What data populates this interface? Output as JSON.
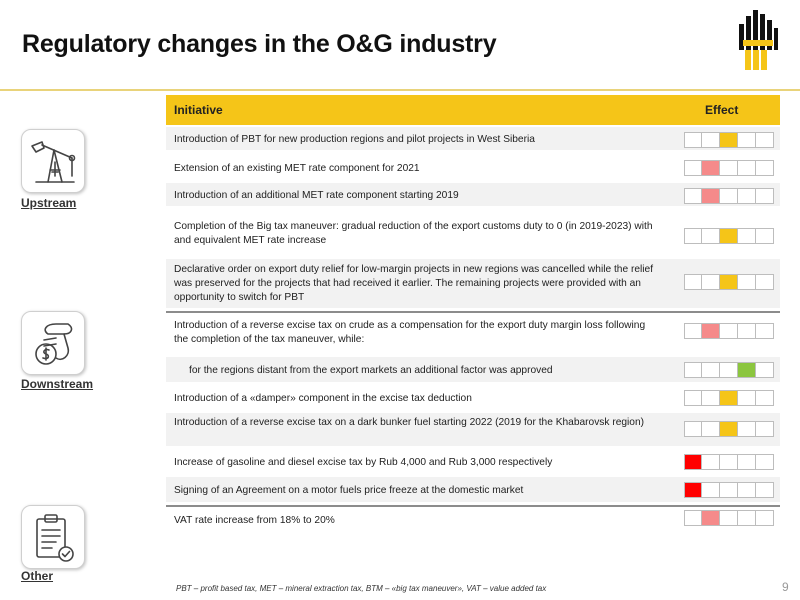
{
  "title": "Regulatory changes in the O&G industry",
  "logo": "rosneft-logo",
  "colors": {
    "header": "#f5c518",
    "red": "#ff0000",
    "pink": "#f58a8a",
    "yellow": "#f5c518",
    "green": "#8cc63f"
  },
  "table": {
    "header_initiative": "Initiative",
    "header_effect": "Effect",
    "effect_scale_cells": 5,
    "rows": [
      {
        "text": "Introduction of PBT for new production regions and pilot projects in West Siberia",
        "effect": "yellow",
        "effect_cell": 3
      },
      {
        "text": "Extension of an existing MET rate component for 2021",
        "effect": "pink",
        "effect_cell": 2
      },
      {
        "text": "Introduction of an additional MET rate component starting 2019",
        "effect": "pink",
        "effect_cell": 2
      },
      {
        "text": "Completion of the Big tax maneuver: gradual reduction of the export customs duty to 0 (in 2019-2023) with and equivalent MET rate increase",
        "effect": "yellow",
        "effect_cell": 3
      },
      {
        "text": "Declarative order on export duty relief for low-margin projects in new regions was cancelled while the relief was preserved for the projects that had received it earlier. The remaining projects were provided with an opportunity to switch for PBT",
        "effect": "yellow",
        "effect_cell": 3
      },
      {
        "text": "Introduction of a reverse excise tax on crude as a compensation for the export duty margin loss following the completion of the tax maneuver, while:",
        "effect": "pink",
        "effect_cell": 2
      },
      {
        "text": "for the regions distant from the export markets an additional factor was approved",
        "effect": "green",
        "effect_cell": 4
      },
      {
        "text": "Introduction of a «damper» component in the excise tax deduction",
        "effect": "yellow",
        "effect_cell": 3
      },
      {
        "text": "Introduction of a reverse excise tax on a dark bunker fuel starting 2022 (2019 for the Khabarovsk region)",
        "effect": "yellow",
        "effect_cell": 3
      },
      {
        "text": "Increase of gasoline and diesel excise tax by Rub 4,000 and Rub 3,000 respectively",
        "effect": "red",
        "effect_cell": 1
      },
      {
        "text": "Signing of an Agreement on a motor fuels price freeze at the domestic market",
        "effect": "red",
        "effect_cell": 1
      },
      {
        "text": "VAT rate increase from 18% to 20%",
        "effect": "pink",
        "effect_cell": 2
      }
    ]
  },
  "categories": [
    {
      "label": "Upstream",
      "icon": "oil-pumpjack-icon"
    },
    {
      "label": "Downstream",
      "icon": "fuel-nozzle-money-icon"
    },
    {
      "label": "Other",
      "icon": "clipboard-check-icon"
    }
  ],
  "footnote": "PBT – profit based tax, MET – mineral extraction tax, BTM – «big tax maneuver», VAT – value added tax",
  "page_number": "9"
}
